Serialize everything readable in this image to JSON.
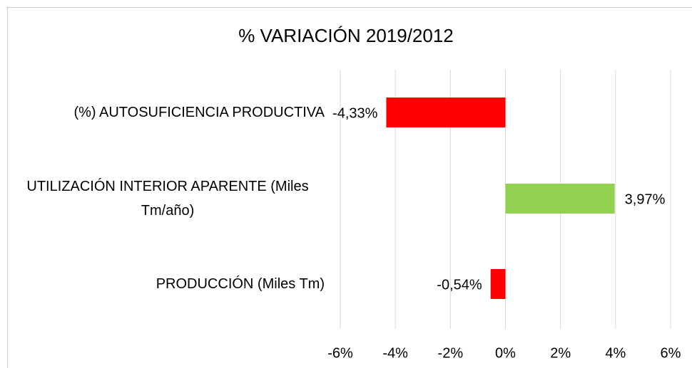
{
  "chart_data": {
    "type": "barh",
    "title": "% VARIACIÓN 2019/2012",
    "categories": [
      "(%) AUTOSUFICIENCIA PRODUCTIVA",
      "UTILIZACIÓN INTERIOR APARENTE (Miles Tm/año)",
      "PRODUCCIÓN (Miles Tm)"
    ],
    "values": [
      -4.33,
      3.97,
      -0.54
    ],
    "value_labels": [
      "-4,33%",
      "3,97%",
      "-0,54%"
    ],
    "colors": [
      "#ff0000",
      "#92d050",
      "#ff0000"
    ],
    "xlim": [
      -6,
      6
    ],
    "xticks": [
      {
        "value": -6,
        "label": "-6%"
      },
      {
        "value": -4,
        "label": "-4%"
      },
      {
        "value": -2,
        "label": "-2%"
      },
      {
        "value": 0,
        "label": "0%"
      },
      {
        "value": 2,
        "label": "2%"
      },
      {
        "value": 4,
        "label": "4%"
      },
      {
        "value": 6,
        "label": "6%"
      }
    ],
    "grid": true
  }
}
